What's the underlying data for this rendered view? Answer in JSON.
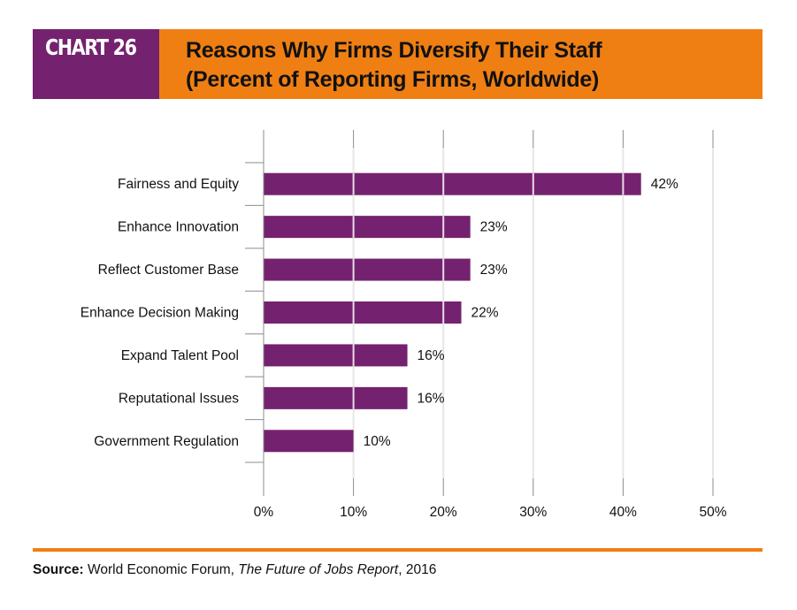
{
  "header": {
    "tag": "CHART 26",
    "title_line1": "Reasons Why Firms Diversify Their Staff",
    "title_line2": "(Percent of Reporting Firms, Worldwide)"
  },
  "colors": {
    "bar": "#74226f",
    "tag_background": "#74226f",
    "title_background": "#ef7f13",
    "rule": "#ef7f13",
    "gridline": "#e6e6e6",
    "axis": "#8c8c8c"
  },
  "chart_data": {
    "type": "bar",
    "orientation": "horizontal",
    "title": "Reasons Why Firms Diversify Their Staff (Percent of Reporting Firms, Worldwide)",
    "xlabel": "",
    "ylabel": "",
    "categories": [
      "Fairness and Equity",
      "Enhance Innovation",
      "Reflect Customer Base",
      "Enhance Decision Making",
      "Expand Talent Pool",
      "Reputational Issues",
      "Government Regulation"
    ],
    "values": [
      42,
      23,
      23,
      22,
      16,
      16,
      10
    ],
    "value_labels": [
      "42%",
      "23%",
      "23%",
      "22%",
      "16%",
      "16%",
      "10%"
    ],
    "xlim": [
      0,
      50
    ],
    "x_ticks": [
      0,
      10,
      20,
      30,
      40,
      50
    ],
    "x_tick_labels": [
      "0%",
      "10%",
      "20%",
      "30%",
      "40%",
      "50%"
    ],
    "grid": true,
    "legend": "none"
  },
  "source": {
    "label": "Source:",
    "org": " World Economic Forum, ",
    "publication": "The Future of Jobs Report",
    "year": ", 2016"
  }
}
